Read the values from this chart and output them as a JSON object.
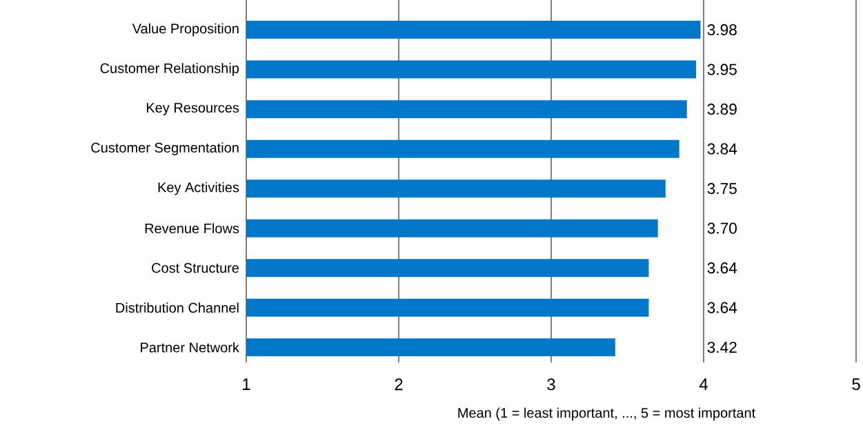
{
  "chart_data": {
    "type": "bar",
    "orientation": "horizontal",
    "categories": [
      "Value Proposition",
      "Customer Relationship",
      "Key Resources",
      "Customer Segmentation",
      "Key Activities",
      "Revenue Flows",
      "Cost Structure",
      "Distribution Channel",
      "Partner Network"
    ],
    "values": [
      3.98,
      3.95,
      3.89,
      3.84,
      3.75,
      3.7,
      3.64,
      3.64,
      3.42
    ],
    "value_labels": [
      "3.98",
      "3.95",
      "3.89",
      "3.84",
      "3.75",
      "3.70",
      "3.64",
      "3.64",
      "3.42"
    ],
    "color": "#0077c8",
    "xlim": [
      1,
      5
    ],
    "xticks": [
      1,
      2,
      3,
      4,
      5
    ],
    "grid": "x",
    "xlabel": "Mean (1 = least important, ..., 5 = most important"
  }
}
